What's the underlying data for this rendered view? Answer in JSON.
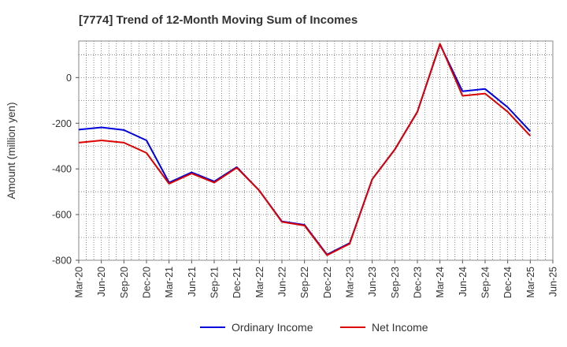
{
  "chart_data": {
    "type": "line",
    "title": "[7774]  Trend of 12-Month Moving Sum of Incomes",
    "xlabel": "",
    "ylabel": "Amount (million yen)",
    "ylim": [
      -800,
      160
    ],
    "yticks": [
      0,
      -200,
      -400,
      -600,
      -800
    ],
    "grid": true,
    "legend_position": "bottom-center",
    "x_ticks": [
      "Mar-20",
      "Jun-20",
      "Sep-20",
      "Dec-20",
      "Mar-21",
      "Jun-21",
      "Sep-21",
      "Dec-21",
      "Mar-22",
      "Jun-22",
      "Sep-22",
      "Dec-22",
      "Mar-23",
      "Jun-23",
      "Sep-23",
      "Dec-23",
      "Mar-24",
      "Jun-24",
      "Sep-24",
      "Dec-24",
      "Mar-25",
      "Jun-25"
    ],
    "x": [
      "Mar-20",
      "Jun-20",
      "Sep-20",
      "Dec-20",
      "Mar-21",
      "Jun-21",
      "Sep-21",
      "Dec-21",
      "Mar-22",
      "Jun-22",
      "Sep-22",
      "Dec-22",
      "Mar-23",
      "Jun-23",
      "Sep-23",
      "Dec-23",
      "Mar-24",
      "Jun-24",
      "Sep-24",
      "Dec-24",
      "Mar-25"
    ],
    "series": [
      {
        "name": "Ordinary Income",
        "color": "#0000dd",
        "values": [
          -228,
          -218,
          -230,
          -275,
          -460,
          -415,
          -455,
          -392,
          -495,
          -630,
          -645,
          -775,
          -725,
          -445,
          -315,
          -150,
          145,
          -60,
          -50,
          -130,
          -235
        ]
      },
      {
        "name": "Net Income",
        "color": "#dd0000",
        "values": [
          -285,
          -275,
          -285,
          -330,
          -465,
          -420,
          -460,
          -395,
          -495,
          -632,
          -648,
          -778,
          -728,
          -445,
          -315,
          -150,
          148,
          -80,
          -70,
          -150,
          -255
        ]
      }
    ]
  }
}
